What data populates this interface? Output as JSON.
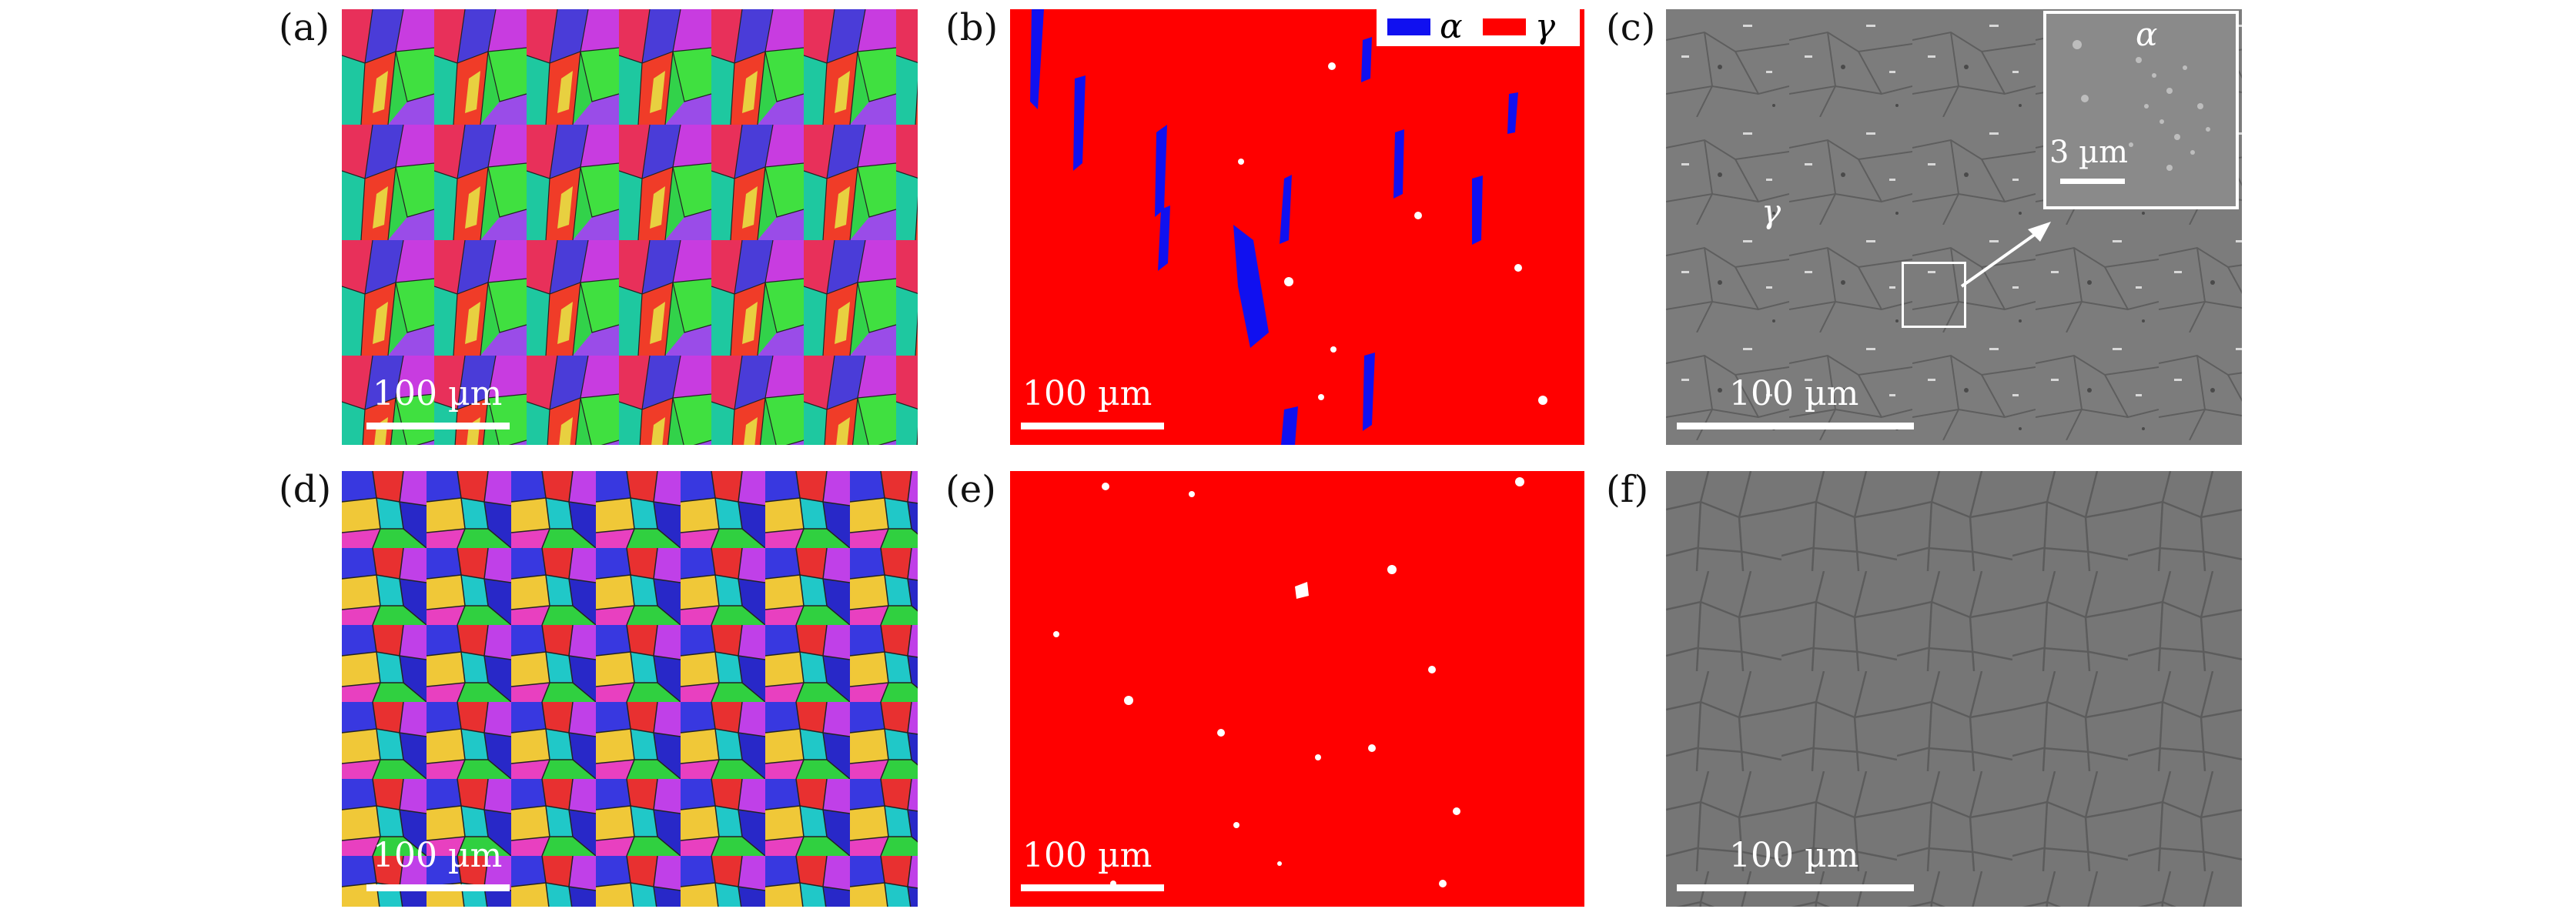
{
  "panels": [
    {
      "id": "a",
      "label": "(a)",
      "scalebar": "100 µm"
    },
    {
      "id": "b",
      "label": "(b)",
      "scalebar": "100 µm"
    },
    {
      "id": "c",
      "label": "(c)",
      "scalebar": "100 µm"
    },
    {
      "id": "d",
      "label": "(d)",
      "scalebar": "100 µm"
    },
    {
      "id": "e",
      "label": "(e)",
      "scalebar": "100 µm"
    },
    {
      "id": "f",
      "label": "(f)",
      "scalebar": "100 µm"
    }
  ],
  "legend": {
    "alpha": {
      "symbol": "α",
      "color": "#1010f0"
    },
    "gamma": {
      "symbol": "γ",
      "color": "#ff0000"
    }
  },
  "panel_c": {
    "phase_label": "γ",
    "inset": {
      "phase_label": "α",
      "scalebar": "3 µm"
    }
  },
  "colors": {
    "phase_map_gamma": "#ff0000",
    "phase_map_alpha": "#1010f0",
    "sem_background": "#7a7a7a"
  }
}
